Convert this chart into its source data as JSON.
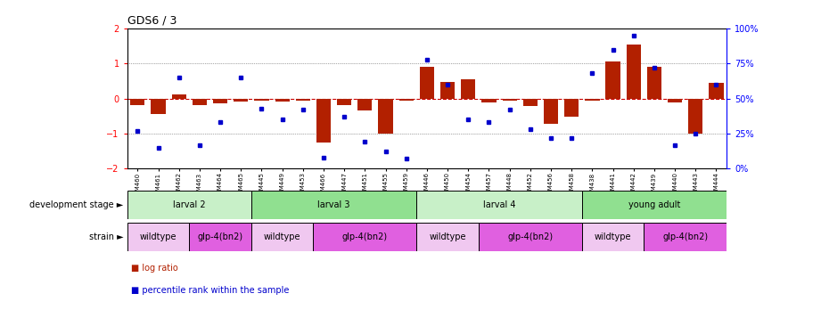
{
  "title": "GDS6 / 3",
  "samples": [
    "GSM460",
    "GSM461",
    "GSM462",
    "GSM463",
    "GSM464",
    "GSM465",
    "GSM445",
    "GSM449",
    "GSM453",
    "GSM466",
    "GSM447",
    "GSM451",
    "GSM455",
    "GSM459",
    "GSM446",
    "GSM450",
    "GSM454",
    "GSM457",
    "GSM448",
    "GSM452",
    "GSM456",
    "GSM458",
    "GSM438",
    "GSM441",
    "GSM442",
    "GSM439",
    "GSM440",
    "GSM443",
    "GSM444"
  ],
  "log_ratio": [
    -0.18,
    -0.45,
    0.12,
    -0.18,
    -0.13,
    -0.08,
    -0.05,
    -0.08,
    -0.05,
    -1.25,
    -0.18,
    -0.35,
    -1.0,
    -0.05,
    0.92,
    0.48,
    0.55,
    -0.12,
    -0.05,
    -0.22,
    -0.72,
    -0.52,
    -0.05,
    1.05,
    1.55,
    0.92,
    -0.1,
    -1.0,
    0.45
  ],
  "percentile": [
    27,
    15,
    65,
    17,
    33,
    65,
    43,
    35,
    42,
    8,
    37,
    19,
    12,
    7,
    78,
    60,
    35,
    33,
    42,
    28,
    22,
    22,
    68,
    85,
    95,
    72,
    17,
    25,
    60
  ],
  "dev_stages": [
    {
      "label": "larval 2",
      "start": 0,
      "end": 6,
      "color": "#c8f0c8"
    },
    {
      "label": "larval 3",
      "start": 6,
      "end": 14,
      "color": "#90e090"
    },
    {
      "label": "larval 4",
      "start": 14,
      "end": 22,
      "color": "#c8f0c8"
    },
    {
      "label": "young adult",
      "start": 22,
      "end": 29,
      "color": "#90e090"
    }
  ],
  "strains": [
    {
      "label": "wildtype",
      "start": 0,
      "end": 3,
      "color": "#f0c8f0"
    },
    {
      "label": "glp-4(bn2)",
      "start": 3,
      "end": 6,
      "color": "#e060e0"
    },
    {
      "label": "wildtype",
      "start": 6,
      "end": 9,
      "color": "#f0c8f0"
    },
    {
      "label": "glp-4(bn2)",
      "start": 9,
      "end": 14,
      "color": "#e060e0"
    },
    {
      "label": "wildtype",
      "start": 14,
      "end": 17,
      "color": "#f0c8f0"
    },
    {
      "label": "glp-4(bn2)",
      "start": 17,
      "end": 22,
      "color": "#e060e0"
    },
    {
      "label": "wildtype",
      "start": 22,
      "end": 25,
      "color": "#f0c8f0"
    },
    {
      "label": "glp-4(bn2)",
      "start": 25,
      "end": 29,
      "color": "#e060e0"
    }
  ],
  "bar_color": "#b22000",
  "dot_color": "#0000cc",
  "zero_line_color": "#cc0000",
  "grid_color": "#555555",
  "ylim": [
    -2,
    2
  ],
  "y2lim": [
    0,
    100
  ],
  "y2ticks": [
    0,
    25,
    50,
    75,
    100
  ],
  "y2labels": [
    "0%",
    "25%",
    "50%",
    "75%",
    "100%"
  ],
  "yticks": [
    -2,
    -1,
    0,
    1,
    2
  ],
  "figsize": [
    9.21,
    3.57
  ],
  "dpi": 100
}
